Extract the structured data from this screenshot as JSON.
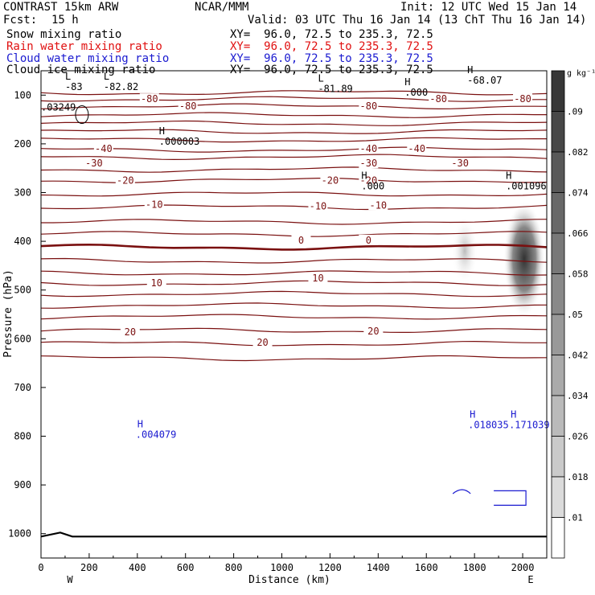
{
  "header": {
    "model_title": "CONTRAST 15km ARW",
    "center": "NCAR/MMM",
    "init": "Init: 12 UTC Wed 15 Jan 14",
    "fcst_label": "Fcst:",
    "fcst_value": "15 h",
    "valid": "Valid: 03 UTC Thu 16 Jan 14 (13 ChT Thu 16 Jan 14)"
  },
  "fields": [
    {
      "name": "Snow mixing ratio",
      "xy": "XY=  96.0, 72.5 to 235.3, 72.5",
      "color": "#000000"
    },
    {
      "name": "Rain water mixing ratio",
      "xy": "XY=  96.0, 72.5 to 235.3, 72.5",
      "color": "#e01010"
    },
    {
      "name": "Cloud water mixing ratio",
      "xy": "XY=  96.0, 72.5 to 235.3, 72.5",
      "color": "#1a1ad0"
    },
    {
      "name": "Cloud ice mixing ratio",
      "xy": "XY=  96.0, 72.5 to 235.3, 72.5",
      "color": "#000000"
    }
  ],
  "chart_data": {
    "type": "heatmap",
    "xlabel": "Distance (km)",
    "ylabel": "Pressure (hPa)",
    "x_ticks": [
      0,
      200,
      400,
      600,
      800,
      1000,
      1200,
      1400,
      1600,
      1800,
      2000
    ],
    "xlim": [
      0,
      2100
    ],
    "y_ticks": [
      100,
      200,
      300,
      400,
      500,
      600,
      700,
      800,
      900,
      1000
    ],
    "ylim": [
      50,
      1050
    ],
    "y_axis_inverted": true,
    "x_end_labels": {
      "left": "W",
      "right": "E"
    },
    "colorbar": {
      "unit": "g kg⁻¹",
      "labels": [
        ".09",
        ".082",
        ".074",
        ".066",
        ".058",
        ".05",
        ".042",
        ".034",
        ".026",
        ".018",
        ".01"
      ],
      "levels": [
        0.01,
        0.018,
        0.026,
        0.034,
        0.042,
        0.05,
        0.058,
        0.066,
        0.074,
        0.082,
        0.09
      ]
    },
    "contour_color": "#7a1010",
    "temperature_contours": [
      {
        "value": -80,
        "p": 95
      },
      {
        "value": -80,
        "p": 108
      },
      {
        "value": -80,
        "p": 123
      },
      {
        "p": 141
      },
      {
        "p": 158
      },
      {
        "p": 175
      },
      {
        "p": 192
      },
      {
        "value": -40,
        "p": 212
      },
      {
        "p": 227
      },
      {
        "value": -30,
        "p": 253
      },
      {
        "p": 275
      },
      {
        "value": -20,
        "p": 303
      },
      {
        "p": 330
      },
      {
        "value": -10,
        "p": 360
      },
      {
        "p": 385
      },
      {
        "value": 0,
        "p": 412,
        "bold": true
      },
      {
        "p": 440
      },
      {
        "p": 465
      },
      {
        "value": 10,
        "p": 486
      },
      {
        "p": 508
      },
      {
        "p": 532
      },
      {
        "p": 555
      },
      {
        "value": 20,
        "p": 583
      },
      {
        "p": 610
      },
      {
        "p": 640
      }
    ],
    "contour_labels": [
      {
        "text": "-80",
        "x": 450,
        "p": 108
      },
      {
        "text": "-80",
        "x": 610,
        "p": 123
      },
      {
        "text": "-80",
        "x": 1360,
        "p": 123
      },
      {
        "text": "-80",
        "x": 1650,
        "p": 108
      },
      {
        "text": "-80",
        "x": 2000,
        "p": 108
      },
      {
        "text": "-40",
        "x": 260,
        "p": 210
      },
      {
        "text": "-40",
        "x": 1360,
        "p": 210
      },
      {
        "text": "-40",
        "x": 1560,
        "p": 210
      },
      {
        "text": "-30",
        "x": 220,
        "p": 240
      },
      {
        "text": "-30",
        "x": 1360,
        "p": 240
      },
      {
        "text": "-30",
        "x": 1740,
        "p": 240
      },
      {
        "text": "-20",
        "x": 350,
        "p": 275
      },
      {
        "text": "-20",
        "x": 1200,
        "p": 275
      },
      {
        "text": "-20",
        "x": 1360,
        "p": 275
      },
      {
        "text": "-10",
        "x": 470,
        "p": 325
      },
      {
        "text": "-10",
        "x": 1150,
        "p": 328
      },
      {
        "text": "-10",
        "x": 1400,
        "p": 326
      },
      {
        "text": "0",
        "x": 1080,
        "p": 398
      },
      {
        "text": "0",
        "x": 1360,
        "p": 398
      },
      {
        "text": "10",
        "x": 480,
        "p": 486
      },
      {
        "text": "10",
        "x": 1150,
        "p": 476
      },
      {
        "text": "20",
        "x": 370,
        "p": 586
      },
      {
        "text": "20",
        "x": 920,
        "p": 608
      },
      {
        "text": "20",
        "x": 1380,
        "p": 585
      }
    ],
    "extrema": [
      {
        "mark": "L",
        "value": "-83",
        "x": 100,
        "p": 68
      },
      {
        "mark": "L",
        "value": "-82.82",
        "x": 260,
        "p": 68
      },
      {
        "mark": "L",
        "value": "-81.89",
        "x": 1150,
        "p": 72
      },
      {
        "mark": "H",
        "value": "-68.07",
        "x": 1770,
        "p": 55
      },
      {
        "mark": "H",
        "value": ".000",
        "x": 1510,
        "p": 80
      },
      {
        "mark": "",
        "value": ".03249",
        "x": 0,
        "p": 110
      },
      {
        "mark": "H",
        "value": ".000003",
        "x": 490,
        "p": 180
      },
      {
        "mark": "H",
        "value": ".000",
        "x": 1330,
        "p": 272
      },
      {
        "mark": "H",
        "value": ".001096",
        "x": 1930,
        "p": 272
      }
    ],
    "cloud_water_extrema": [
      {
        "mark": "H",
        "value": ".004079",
        "x": 400,
        "p": 782
      },
      {
        "mark": "H",
        "value": ".018035",
        "x": 1780,
        "p": 762
      },
      {
        "mark": "H",
        "value": ".171039",
        "x": 1950,
        "p": 762
      }
    ],
    "surface": "1000"
  }
}
